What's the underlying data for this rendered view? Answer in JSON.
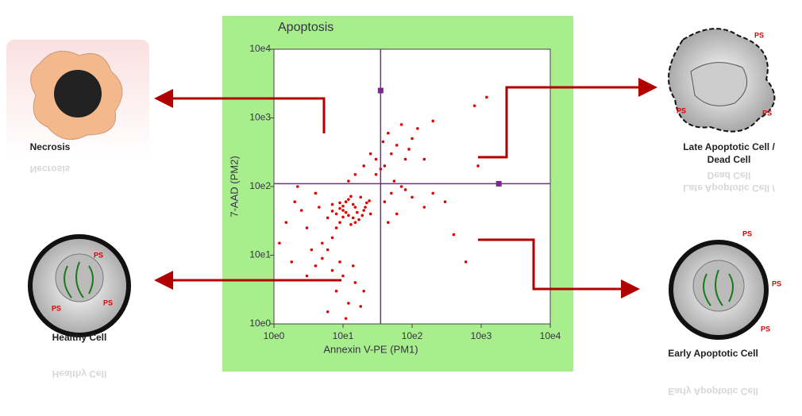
{
  "chart_data": {
    "type": "scatter",
    "title": "Apoptosis",
    "x_label": "Annexin V-PE (PM1)",
    "y_label": "7-AAD (PM2)",
    "log_scale": true,
    "color": "#e00000",
    "gate_color": "#7a2a8a",
    "xlim": [
      1,
      10000
    ],
    "ylim": [
      1,
      10000
    ],
    "xticks": [
      {
        "value": 1,
        "label": "10e0"
      },
      {
        "value": 10,
        "label": "10e1"
      },
      {
        "value": 100,
        "label": "10e2"
      },
      {
        "value": 1000,
        "label": "10e3"
      },
      {
        "value": 10000,
        "label": "10e4"
      }
    ],
    "yticks": [
      {
        "value": 1,
        "label": "10e0"
      },
      {
        "value": 10,
        "label": "10e1"
      },
      {
        "value": 100,
        "label": "10e2"
      },
      {
        "value": 1000,
        "label": "10e3"
      },
      {
        "value": 10000,
        "label": "10e4"
      }
    ],
    "gate": {
      "x": 35,
      "y": 110
    },
    "handles": {
      "x": [
        35,
        1800
      ],
      "y": [
        2500,
        110
      ]
    },
    "x": [
      8,
      10,
      12,
      15,
      9,
      11,
      14,
      7,
      20,
      18,
      6,
      13,
      10,
      16,
      22,
      9,
      12,
      25,
      8,
      17,
      11,
      14,
      19,
      7,
      13,
      10,
      24,
      15,
      9,
      21,
      1.5,
      2,
      3,
      1.2,
      2.5,
      4,
      1.8,
      3.5,
      2.2,
      4.5,
      8,
      10,
      12,
      6,
      9,
      15,
      11,
      7,
      20,
      5,
      14,
      18,
      5,
      6,
      4,
      7,
      3,
      40,
      50,
      30,
      60,
      80,
      45,
      70,
      100,
      35,
      90,
      120,
      55,
      150,
      200,
      38,
      40,
      50,
      60,
      80,
      100,
      150,
      45,
      70,
      200,
      300,
      15,
      20,
      25,
      12,
      30,
      800,
      1200,
      400,
      600,
      900
    ],
    "y": [
      40,
      45,
      38,
      50,
      30,
      60,
      35,
      55,
      45,
      70,
      35,
      28,
      52,
      42,
      58,
      48,
      65,
      40,
      25,
      33,
      42,
      55,
      38,
      44,
      72,
      36,
      62,
      30,
      58,
      50,
      30,
      60,
      25,
      15,
      45,
      80,
      8,
      12,
      100,
      50,
      3,
      5,
      2,
      1.5,
      8,
      4,
      1.2,
      6,
      3,
      9,
      7,
      1.8,
      15,
      12,
      7,
      18,
      5,
      200,
      300,
      150,
      400,
      250,
      600,
      800,
      500,
      180,
      350,
      700,
      120,
      250,
      900,
      450,
      60,
      80,
      40,
      90,
      70,
      50,
      30,
      100,
      80,
      60,
      150,
      200,
      300,
      120,
      250,
      1500,
      2000,
      20,
      8,
      200
    ]
  },
  "diagram": {
    "necrosis": "Necrosis",
    "late": [
      "Late Apoptotic Cell /",
      "Dead Cell"
    ],
    "healthy": "Healthy Cell",
    "early": "Early Apoptotic Cell",
    "ps": "PS"
  }
}
